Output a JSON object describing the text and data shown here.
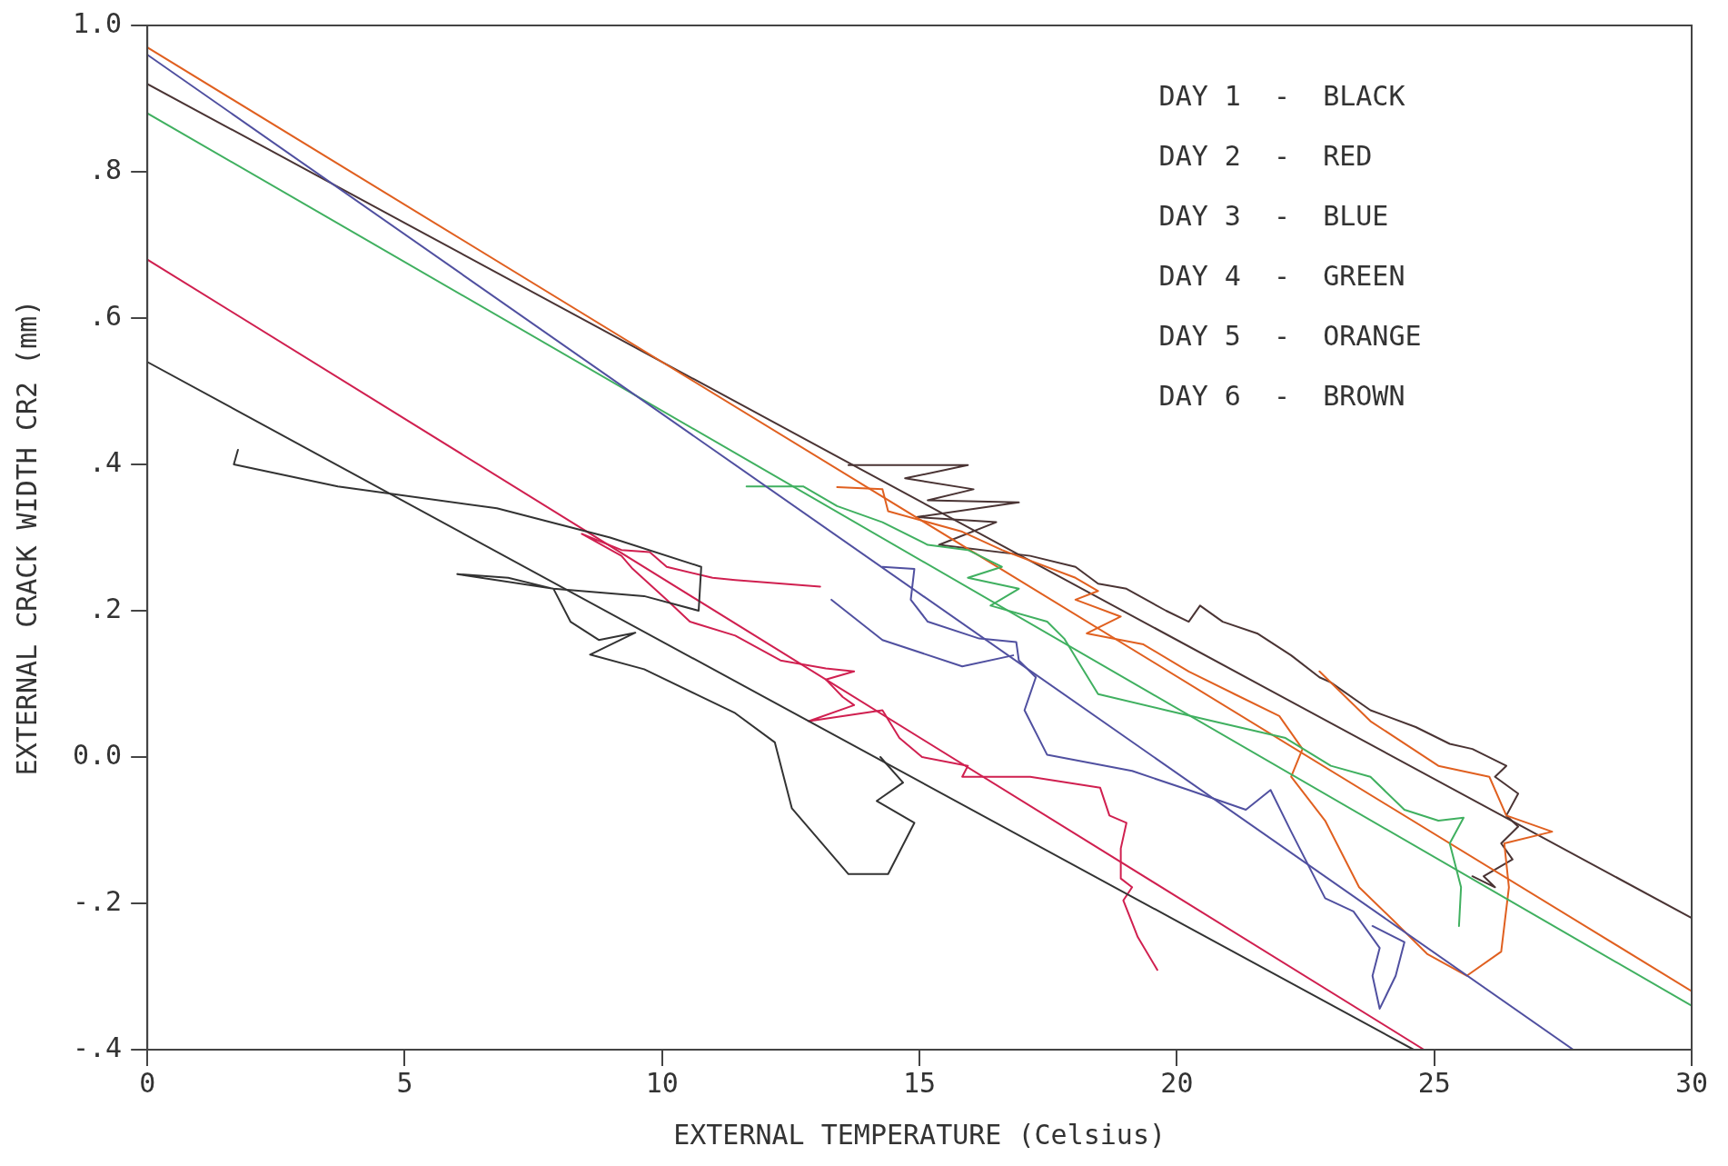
{
  "chart_data": {
    "type": "line",
    "xlabel": "EXTERNAL TEMPERATURE (Celsius)",
    "ylabel": "EXTERNAL CRACK WIDTH CR2 (mm)",
    "xlim": [
      0,
      30
    ],
    "xticks": [
      0,
      5,
      10,
      15,
      20,
      25,
      30
    ],
    "ylim": [
      -0.4,
      1.0
    ],
    "yticks": [
      {
        "value": -0.4,
        "label": "-.4"
      },
      {
        "value": -0.2,
        "label": "-.2"
      },
      {
        "value": 0,
        "label": "0.0"
      },
      {
        "value": 0.2,
        "label": ".2"
      },
      {
        "value": 0.4,
        "label": ".4"
      },
      {
        "value": 0.6,
        "label": ".6"
      },
      {
        "value": 0.8,
        "label": ".8"
      },
      {
        "value": 1.0,
        "label": "1.0"
      }
    ],
    "grid": false,
    "legend": false,
    "annotations": [
      "DAY 1  -  BLACK",
      "DAY 2  -  RED",
      "DAY 3  -  BLUE",
      "DAY 4  -  GREEN",
      "DAY 5  -  ORANGE",
      "DAY 6  -  BROWN"
    ],
    "series": [
      {
        "color": "#333333",
        "x": [
          1.76,
          1.68,
          3.7,
          6.79,
          8.99,
          10.76,
          10.71,
          9.65,
          7.89,
          6.02,
          7.01,
          7.89,
          8.22,
          8.77,
          9.48,
          8.6,
          9.65,
          11.42,
          12.19,
          12.52,
          13.62,
          14.39,
          14.9,
          14.17,
          14.68,
          14.24
        ],
        "values": [
          0.42,
          0.4,
          0.37,
          0.34,
          0.3,
          0.26,
          0.2,
          0.22,
          0.23,
          0.25,
          0.245,
          0.23,
          0.185,
          0.16,
          0.17,
          0.14,
          0.12,
          0.06,
          0.02,
          -0.07,
          -0.16,
          -0.16,
          -0.09,
          -0.06,
          -0.035,
          0.0
        ]
      },
      {
        "color": "#333333",
        "x": [
          0,
          24.6
        ],
        "values": [
          0.54,
          -0.4
        ]
      },
      {
        "color": "#d02050",
        "x": [
          13.07,
          11.42,
          10.98,
          10.09,
          9.76,
          9.21,
          8.44,
          9.21,
          9.43,
          10.09,
          10.54,
          11.42,
          12.3,
          13.18,
          13.73,
          13.18,
          13.51,
          13.73,
          12.85,
          14.28,
          14.61,
          15.05,
          15.94,
          15.83,
          17.15,
          18.51,
          18.69,
          19.02,
          18.91,
          18.91,
          19.13,
          18.96,
          19.24,
          19.62
        ],
        "values": [
          0.233,
          0.242,
          0.245,
          0.26,
          0.28,
          0.283,
          0.305,
          0.275,
          0.257,
          0.215,
          0.185,
          0.166,
          0.132,
          0.121,
          0.117,
          0.106,
          0.082,
          0.071,
          0.049,
          0.064,
          0.026,
          0.0,
          -0.012,
          -0.027,
          -0.027,
          -0.042,
          -0.08,
          -0.09,
          -0.125,
          -0.166,
          -0.178,
          -0.196,
          -0.246,
          -0.291
        ]
      },
      {
        "color": "#d02050",
        "x": [
          0,
          24.8
        ],
        "values": [
          0.68,
          -0.4
        ]
      },
      {
        "color": "#5050a0",
        "x": [
          14.28,
          14.9,
          14.83,
          15.16,
          16.16,
          16.88,
          16.93,
          17.26,
          17.04,
          17.48,
          19.13,
          20.23,
          21.34,
          21.82,
          22.22,
          22.88,
          23.43,
          23.94,
          23.8,
          23.94,
          24.25,
          24.42,
          23.8
        ],
        "values": [
          0.26,
          0.257,
          0.215,
          0.185,
          0.162,
          0.157,
          0.132,
          0.109,
          0.064,
          0.003,
          -0.019,
          -0.045,
          -0.072,
          -0.045,
          -0.102,
          -0.193,
          -0.211,
          -0.261,
          -0.299,
          -0.344,
          -0.299,
          -0.253,
          -0.231
        ]
      },
      {
        "color": "#5050a0",
        "x": [
          13.29,
          14.28,
          15.83,
          16.82
        ],
        "values": [
          0.215,
          0.16,
          0.124,
          0.139
        ]
      },
      {
        "color": "#5050a0",
        "x": [
          0,
          27.7
        ],
        "values": [
          0.96,
          -0.4
        ]
      },
      {
        "color": "#40b060",
        "x": [
          11.64,
          12.74,
          13.4,
          14.28,
          15.16,
          15.94,
          16.6,
          15.94,
          16.93,
          16.38,
          17.48,
          17.81,
          18.14,
          18.47,
          19.79,
          20.89,
          22.11,
          22.99,
          23.76,
          24.42,
          25.08,
          25.57,
          25.3,
          25.52,
          25.48
        ],
        "values": [
          0.37,
          0.37,
          0.343,
          0.321,
          0.29,
          0.283,
          0.26,
          0.245,
          0.23,
          0.207,
          0.185,
          0.162,
          0.124,
          0.086,
          0.064,
          0.046,
          0.026,
          -0.012,
          -0.027,
          -0.072,
          -0.087,
          -0.083,
          -0.118,
          -0.178,
          -0.231
        ]
      },
      {
        "color": "#40b060",
        "x": [
          0,
          30
        ],
        "values": [
          0.88,
          -0.34
        ]
      },
      {
        "color": "#e06020",
        "x": [
          13.4,
          14.28,
          14.39,
          15.83,
          16.6,
          18.03,
          18.47,
          18.03,
          18.91,
          18.25,
          19.35,
          20.23,
          21.12,
          21.99,
          22.44,
          22.22,
          22.88,
          23.54,
          24.2,
          24.86,
          25.63,
          26.3,
          26.45,
          26.36,
          27.29,
          26.4,
          26.07,
          25.08,
          23.76,
          22.77
        ],
        "values": [
          0.369,
          0.366,
          0.336,
          0.308,
          0.283,
          0.245,
          0.227,
          0.215,
          0.192,
          0.169,
          0.154,
          0.117,
          0.086,
          0.056,
          0.011,
          -0.027,
          -0.087,
          -0.178,
          -0.223,
          -0.269,
          -0.299,
          -0.266,
          -0.178,
          -0.118,
          -0.102,
          -0.08,
          -0.027,
          -0.012,
          0.049,
          0.117
        ]
      },
      {
        "color": "#e06020",
        "x": [
          0,
          30
        ],
        "values": [
          0.97,
          -0.32
        ]
      },
      {
        "color": "#4a3434",
        "x": [
          13.62,
          15.94,
          14.72,
          16.05,
          15.16,
          16.93,
          14.94,
          16.49,
          15.38,
          17.15,
          18.03,
          18.47,
          19.02,
          19.79,
          20.23,
          20.45,
          20.89,
          21.56,
          22.22,
          22.77,
          22.99,
          23.76,
          24.64,
          25.3,
          25.74,
          26.4,
          26.18,
          26.63,
          26.4,
          26.63,
          26.3,
          26.52,
          25.96,
          26.18,
          25.74
        ],
        "values": [
          0.399,
          0.399,
          0.381,
          0.366,
          0.351,
          0.348,
          0.328,
          0.321,
          0.29,
          0.275,
          0.26,
          0.237,
          0.23,
          0.2,
          0.185,
          0.207,
          0.185,
          0.169,
          0.139,
          0.109,
          0.102,
          0.064,
          0.041,
          0.018,
          0.011,
          -0.012,
          -0.027,
          -0.05,
          -0.08,
          -0.095,
          -0.118,
          -0.14,
          -0.163,
          -0.178,
          -0.163
        ]
      },
      {
        "color": "#4a3434",
        "x": [
          0,
          30
        ],
        "values": [
          0.92,
          -0.22
        ]
      }
    ]
  }
}
